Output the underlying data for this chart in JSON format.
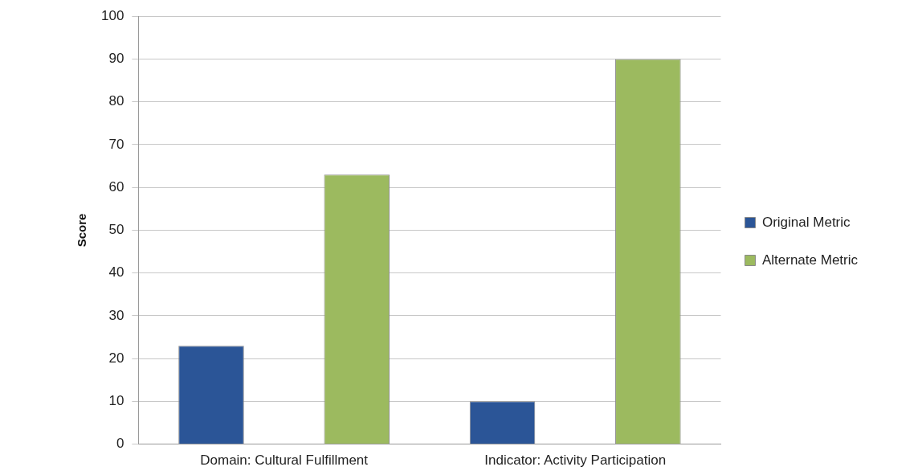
{
  "chart_data": {
    "type": "bar",
    "ylabel": "Score",
    "categories": [
      "Domain: Cultural Fulfillment",
      "Indicator: Activity Participation"
    ],
    "series": [
      {
        "name": "Original Metric",
        "color": "#2b5597",
        "values": [
          23,
          10
        ]
      },
      {
        "name": "Alternate Metric",
        "color": "#9cba5f",
        "values": [
          63,
          90
        ]
      }
    ],
    "ylim": [
      0,
      100
    ],
    "yticks": [
      0,
      10,
      20,
      30,
      40,
      50,
      60,
      70,
      80,
      90,
      100
    ],
    "grid": "y",
    "legend": "right"
  }
}
